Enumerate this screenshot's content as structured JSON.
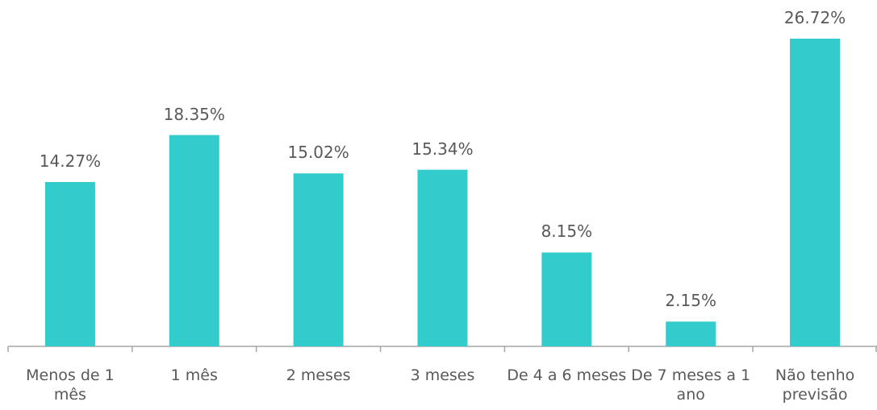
{
  "chart_data": {
    "type": "bar",
    "categories": [
      "Menos de 1 mês",
      "1 mês",
      "2 meses",
      "3 meses",
      "De 4 a 6 meses",
      "De 7 meses a 1 ano",
      "Não tenho previsão"
    ],
    "values": [
      14.27,
      18.35,
      15.02,
      15.34,
      8.15,
      2.15,
      26.72
    ],
    "value_labels": [
      "14.27%",
      "18.35%",
      "15.02%",
      "15.34%",
      "8.15%",
      "2.15%",
      "26.72%"
    ],
    "color": "#33cccc"
  }
}
